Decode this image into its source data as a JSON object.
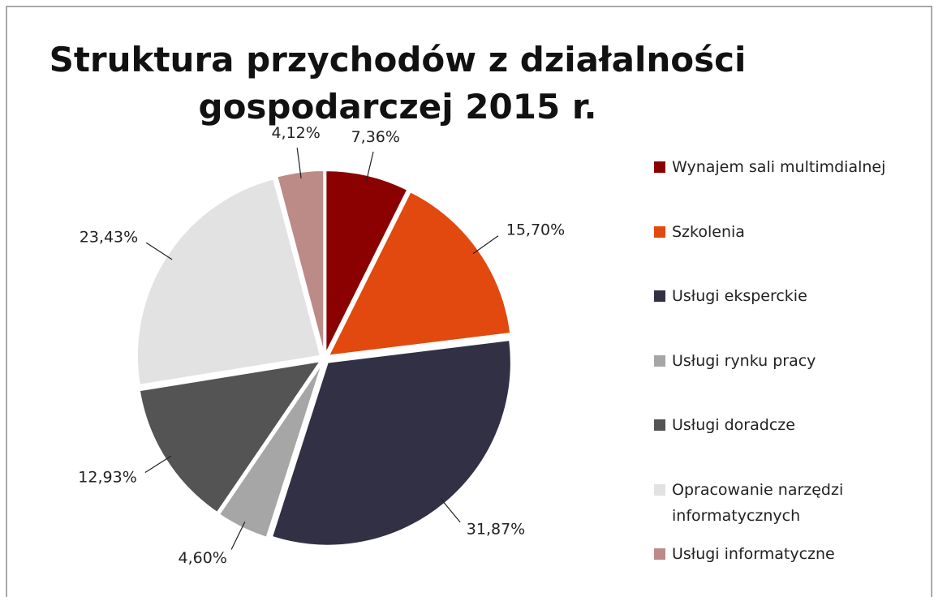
{
  "chart_data": {
    "type": "pie",
    "title": "Struktura przychodów z działalności gospodarczej 2015 r.",
    "categories": [
      "Wynajem sali multimdialnej",
      "Szkolenia",
      "Usługi eksperckie",
      "Usługi rynku pracy",
      "Usługi doradcze",
      "Opracowanie narzędzi informatycznych",
      "Usługi informatyczne"
    ],
    "values": [
      7.36,
      15.7,
      31.87,
      4.6,
      12.93,
      23.43,
      4.12
    ],
    "value_labels": [
      "7,36%",
      "15,70%",
      "31,87%",
      "4,60%",
      "12,93%",
      "23,43%",
      "4,12%"
    ],
    "colors": [
      "#8b0000",
      "#e2490e",
      "#323045",
      "#a6a6a6",
      "#545454",
      "#e2e2e2",
      "#bc8a87"
    ],
    "legend": "right"
  }
}
